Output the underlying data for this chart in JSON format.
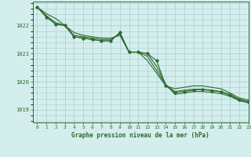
{
  "title": "Graphe pression niveau de la mer (hPa)",
  "bg_color": "#d4eeee",
  "grid_color": "#aacccc",
  "line_color": "#2d6a2d",
  "xlim": [
    -0.5,
    23
  ],
  "ylim": [
    1018.55,
    1022.85
  ],
  "yticks": [
    1019,
    1020,
    1021,
    1022
  ],
  "xticks": [
    0,
    1,
    2,
    3,
    4,
    5,
    6,
    7,
    8,
    9,
    10,
    11,
    12,
    13,
    14,
    15,
    16,
    17,
    18,
    19,
    20,
    21,
    22,
    23
  ],
  "hours": [
    0,
    1,
    2,
    3,
    4,
    5,
    6,
    7,
    8,
    9,
    10,
    11,
    12,
    13,
    14,
    15,
    16,
    17,
    18,
    19,
    20,
    21,
    22,
    23
  ],
  "series1": [
    1022.65,
    1022.42,
    1022.25,
    1022.0,
    1021.75,
    1021.65,
    1021.6,
    1021.55,
    1021.55,
    1021.65,
    1021.05,
    1021.05,
    1020.75,
    1020.3,
    1019.85,
    1019.75,
    1019.8,
    1019.85,
    1019.85,
    1019.8,
    1019.75,
    1019.6,
    1019.42,
    1019.35
  ],
  "series2": [
    1022.65,
    1022.35,
    1022.1,
    1022.0,
    1021.65,
    1021.6,
    1021.55,
    1021.5,
    1021.5,
    1021.7,
    1021.05,
    1021.05,
    1020.9,
    1020.4,
    1019.88,
    1019.65,
    1019.7,
    1019.73,
    1019.73,
    1019.7,
    1019.65,
    1019.55,
    1019.37,
    1019.3
  ],
  "series3": [
    1022.65,
    1022.3,
    1022.05,
    1022.0,
    1021.6,
    1021.55,
    1021.5,
    1021.45,
    1021.45,
    1021.75,
    1021.05,
    1021.05,
    1021.0,
    1020.55,
    1019.9,
    1019.55,
    1019.6,
    1019.65,
    1019.65,
    1019.62,
    1019.57,
    1019.48,
    1019.32,
    1019.25
  ],
  "marker_data": [
    1022.65,
    1022.3,
    1022.05,
    1022.0,
    1021.6,
    1021.55,
    1021.5,
    1021.45,
    1021.45,
    1021.75,
    1021.05,
    1021.05,
    1021.0,
    1020.75,
    1019.85,
    1019.62,
    1019.65,
    1019.7,
    1019.72,
    1019.68,
    1019.63,
    1019.52,
    1019.35,
    1019.28
  ]
}
